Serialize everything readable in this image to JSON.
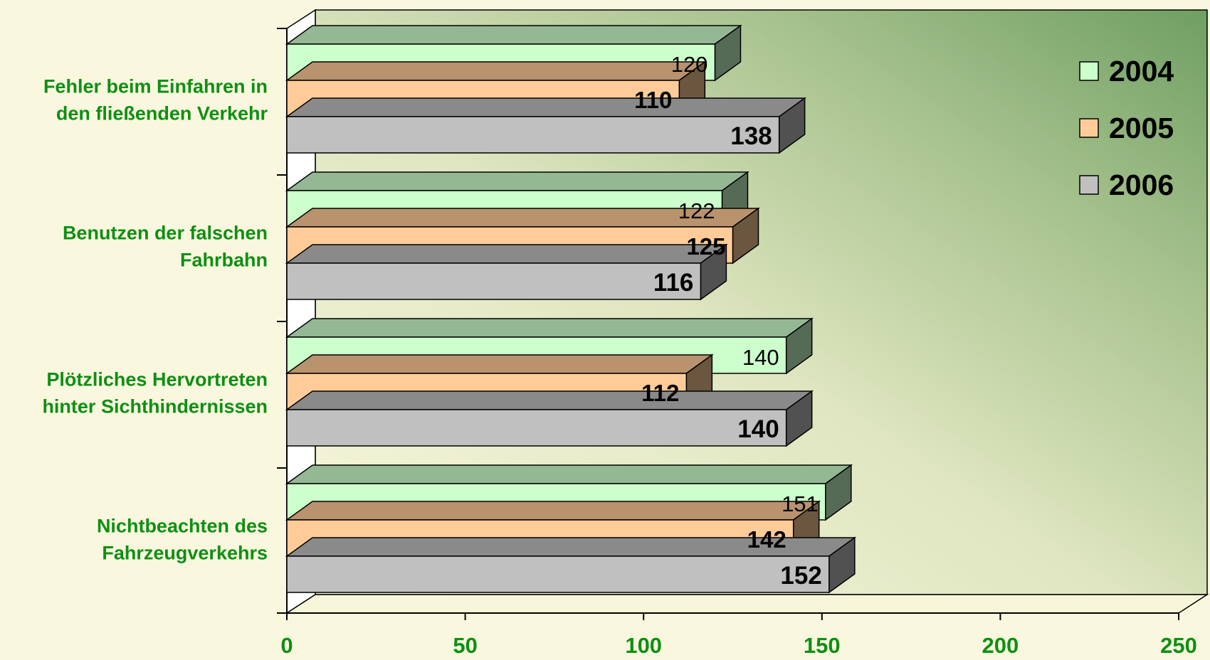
{
  "colors": {
    "page_background": "#f9f8de",
    "plot_green_dark": "#6f9f62",
    "category_label": "#0f8f14",
    "tick_label": "#0f8f14",
    "series_2004": "#ccffcc",
    "series_2005": "#ffcc99",
    "series_2006": "#c0c0c0"
  },
  "chart_data": {
    "type": "bar",
    "orientation": "horizontal",
    "three_d": true,
    "title": "",
    "xlabel": "",
    "ylabel": "",
    "xlim": [
      0,
      250
    ],
    "xticks": [
      "0",
      "50",
      "100",
      "150",
      "200",
      "250"
    ],
    "grid": false,
    "legend_position": "top-right",
    "categories": [
      "Fehler beim Einfahren in den fließenden Verkehr",
      "Benutzen der falschen Fahrbahn",
      "Plötzliches Hervortreten hinter Sichthindernissen",
      "Nichtbeachten des Fahrzeugverkehrs"
    ],
    "category_lines": [
      [
        "Fehler beim Einfahren in",
        "den fließenden Verkehr"
      ],
      [
        "Benutzen der falschen",
        "Fahrbahn"
      ],
      [
        "Plötzliches Hervortreten",
        "hinter Sichthindernissen"
      ],
      [
        "Nichtbeachten des",
        "Fahrzeugverkehrs"
      ]
    ],
    "series": [
      {
        "name": "2004",
        "color": "#ccffcc",
        "values": [
          120,
          122,
          140,
          151
        ]
      },
      {
        "name": "2005",
        "color": "#ffcc99",
        "values": [
          110,
          125,
          112,
          142
        ]
      },
      {
        "name": "2006",
        "color": "#c0c0c0",
        "values": [
          138,
          116,
          140,
          152
        ]
      }
    ]
  }
}
